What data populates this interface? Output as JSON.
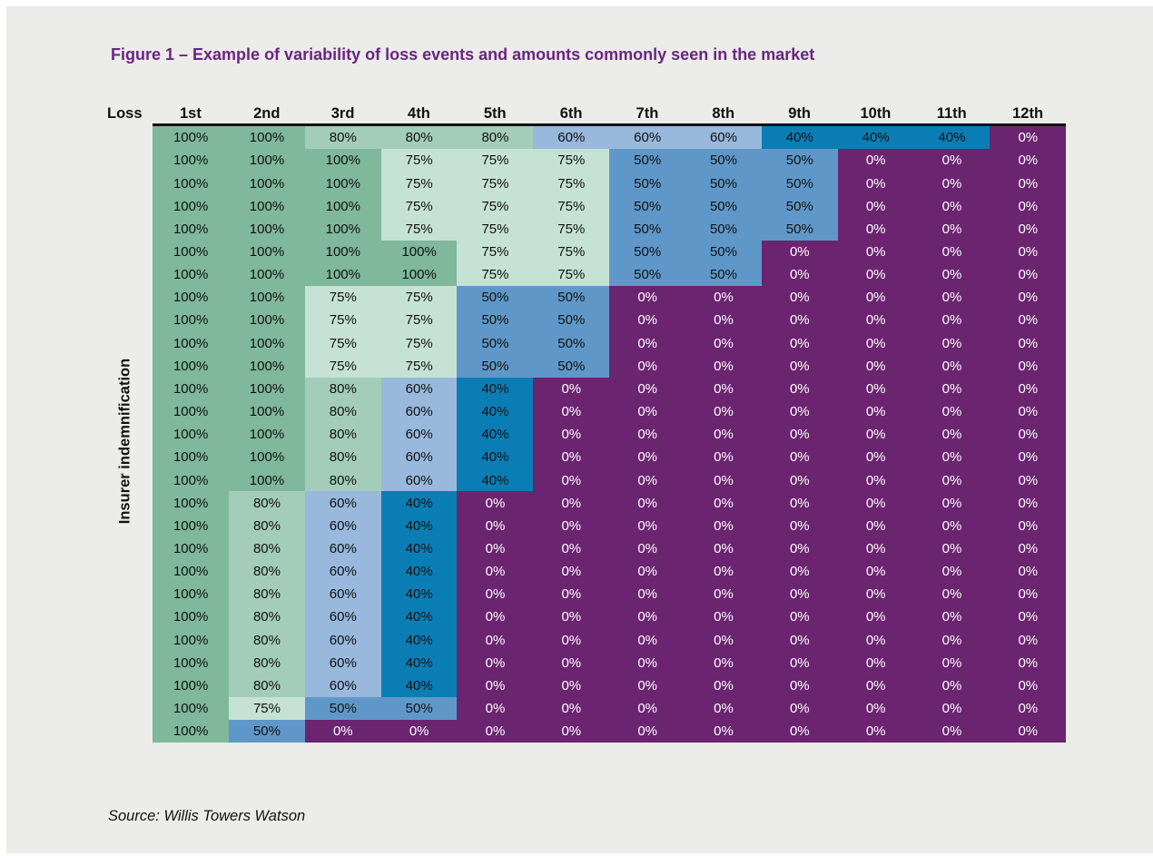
{
  "title": "Figure 1 – Example of variability of loss events and amounts commonly seen in the market",
  "source": "Source: Willis Towers Watson",
  "chart_data": {
    "type": "table",
    "title": "Figure 1 – Example of variability of loss events and amounts commonly seen in the market",
    "corner_label": "Loss",
    "ylabel": "Insurer indemnification",
    "columns": [
      "1st",
      "2nd",
      "3rd",
      "4th",
      "5th",
      "6th",
      "7th",
      "8th",
      "9th",
      "10th",
      "11th",
      "12th"
    ],
    "rows": [
      [
        100,
        100,
        80,
        80,
        80,
        60,
        60,
        60,
        40,
        40,
        40,
        0
      ],
      [
        100,
        100,
        100,
        75,
        75,
        75,
        50,
        50,
        50,
        0,
        0,
        0
      ],
      [
        100,
        100,
        100,
        75,
        75,
        75,
        50,
        50,
        50,
        0,
        0,
        0
      ],
      [
        100,
        100,
        100,
        75,
        75,
        75,
        50,
        50,
        50,
        0,
        0,
        0
      ],
      [
        100,
        100,
        100,
        75,
        75,
        75,
        50,
        50,
        50,
        0,
        0,
        0
      ],
      [
        100,
        100,
        100,
        100,
        75,
        75,
        50,
        50,
        0,
        0,
        0,
        0
      ],
      [
        100,
        100,
        100,
        100,
        75,
        75,
        50,
        50,
        0,
        0,
        0,
        0
      ],
      [
        100,
        100,
        75,
        75,
        50,
        50,
        0,
        0,
        0,
        0,
        0,
        0
      ],
      [
        100,
        100,
        75,
        75,
        50,
        50,
        0,
        0,
        0,
        0,
        0,
        0
      ],
      [
        100,
        100,
        75,
        75,
        50,
        50,
        0,
        0,
        0,
        0,
        0,
        0
      ],
      [
        100,
        100,
        75,
        75,
        50,
        50,
        0,
        0,
        0,
        0,
        0,
        0
      ],
      [
        100,
        100,
        80,
        60,
        40,
        0,
        0,
        0,
        0,
        0,
        0,
        0
      ],
      [
        100,
        100,
        80,
        60,
        40,
        0,
        0,
        0,
        0,
        0,
        0,
        0
      ],
      [
        100,
        100,
        80,
        60,
        40,
        0,
        0,
        0,
        0,
        0,
        0,
        0
      ],
      [
        100,
        100,
        80,
        60,
        40,
        0,
        0,
        0,
        0,
        0,
        0,
        0
      ],
      [
        100,
        100,
        80,
        60,
        40,
        0,
        0,
        0,
        0,
        0,
        0,
        0
      ],
      [
        100,
        80,
        60,
        40,
        0,
        0,
        0,
        0,
        0,
        0,
        0,
        0
      ],
      [
        100,
        80,
        60,
        40,
        0,
        0,
        0,
        0,
        0,
        0,
        0,
        0
      ],
      [
        100,
        80,
        60,
        40,
        0,
        0,
        0,
        0,
        0,
        0,
        0,
        0
      ],
      [
        100,
        80,
        60,
        40,
        0,
        0,
        0,
        0,
        0,
        0,
        0,
        0
      ],
      [
        100,
        80,
        60,
        40,
        0,
        0,
        0,
        0,
        0,
        0,
        0,
        0
      ],
      [
        100,
        80,
        60,
        40,
        0,
        0,
        0,
        0,
        0,
        0,
        0,
        0
      ],
      [
        100,
        80,
        60,
        40,
        0,
        0,
        0,
        0,
        0,
        0,
        0,
        0
      ],
      [
        100,
        80,
        60,
        40,
        0,
        0,
        0,
        0,
        0,
        0,
        0,
        0
      ],
      [
        100,
        80,
        60,
        40,
        0,
        0,
        0,
        0,
        0,
        0,
        0,
        0
      ],
      [
        100,
        75,
        50,
        50,
        0,
        0,
        0,
        0,
        0,
        0,
        0,
        0
      ],
      [
        100,
        50,
        0,
        0,
        0,
        0,
        0,
        0,
        0,
        0,
        0,
        0
      ]
    ],
    "value_suffix": "%",
    "color_scale": {
      "100": "#7fb89b",
      "80": "#a3cdb8",
      "75": "#c6e2d4",
      "60": "#98b8dc",
      "50": "#5f98c8",
      "40": "#0b7db5",
      "0": "#6b2470"
    }
  }
}
